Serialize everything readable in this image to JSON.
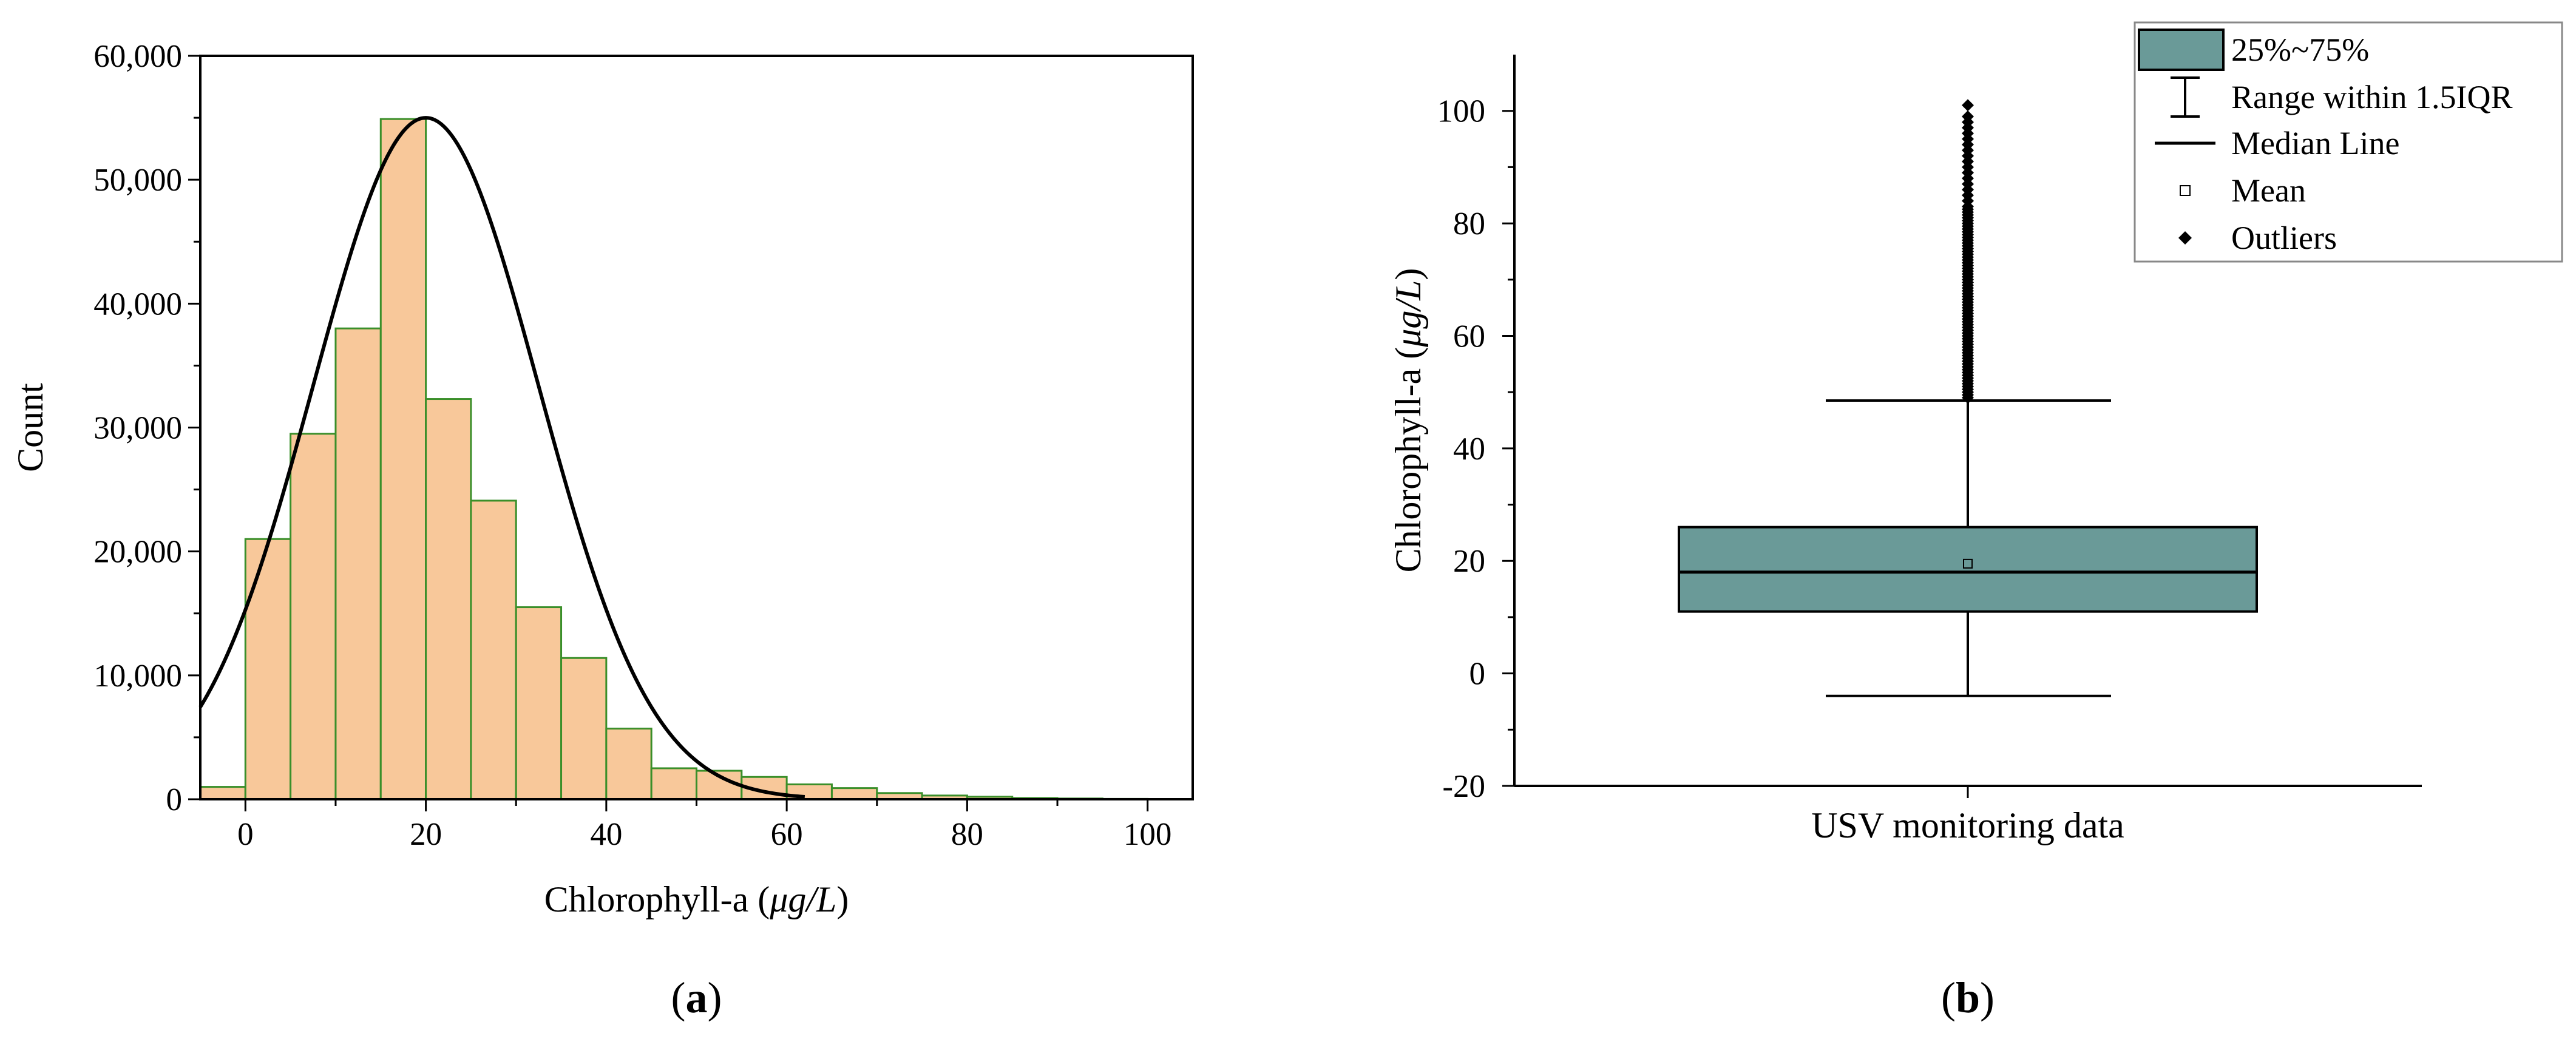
{
  "chart_data": [
    {
      "type": "histogram",
      "xlabel_prefix": "Chlorophyll-a (",
      "xlabel_unit": "μg/L",
      "xlabel_suffix": ")",
      "ylabel": "Count",
      "xlim": [
        -5,
        105
      ],
      "ylim": [
        0,
        60000
      ],
      "x_ticks": [
        0,
        20,
        40,
        60,
        80,
        100
      ],
      "y_ticks": [
        0,
        10000,
        20000,
        30000,
        40000,
        50000,
        60000
      ],
      "x_tick_labels": [
        "0",
        "20",
        "40",
        "60",
        "80",
        "100"
      ],
      "y_tick_labels": [
        "0",
        "10,000",
        "20,000",
        "30,000",
        "40,000",
        "50,000",
        "60,000"
      ],
      "bin_width": 5,
      "bins": [
        {
          "start": -5,
          "end": 0,
          "count": 1000
        },
        {
          "start": 0,
          "end": 5,
          "count": 21000
        },
        {
          "start": 5,
          "end": 10,
          "count": 29500
        },
        {
          "start": 10,
          "end": 15,
          "count": 38000
        },
        {
          "start": 15,
          "end": 20,
          "count": 54900
        },
        {
          "start": 20,
          "end": 25,
          "count": 32300
        },
        {
          "start": 25,
          "end": 30,
          "count": 24100
        },
        {
          "start": 30,
          "end": 35,
          "count": 15500
        },
        {
          "start": 35,
          "end": 40,
          "count": 11400
        },
        {
          "start": 40,
          "end": 45,
          "count": 5700
        },
        {
          "start": 45,
          "end": 50,
          "count": 2500
        },
        {
          "start": 50,
          "end": 55,
          "count": 2300
        },
        {
          "start": 55,
          "end": 60,
          "count": 1800
        },
        {
          "start": 60,
          "end": 65,
          "count": 1200
        },
        {
          "start": 65,
          "end": 70,
          "count": 900
        },
        {
          "start": 70,
          "end": 75,
          "count": 500
        },
        {
          "start": 75,
          "end": 80,
          "count": 300
        },
        {
          "start": 80,
          "end": 85,
          "count": 200
        },
        {
          "start": 85,
          "end": 90,
          "count": 100
        },
        {
          "start": 90,
          "end": 95,
          "count": 60
        },
        {
          "start": 95,
          "end": 100,
          "count": 30
        }
      ],
      "normal_fit": {
        "mean": 20,
        "sd": 12.5,
        "peak_count": 55000
      },
      "bar_fill": "#f8c89a",
      "bar_stroke": "#3a8f2a",
      "curve_color": "#000000",
      "caption": "a",
      "legend": "none"
    },
    {
      "type": "box",
      "categories": [
        "USV monitoring data"
      ],
      "ylabel_prefix": "Chlorophyll-a (",
      "ylabel_unit": "μg/L",
      "ylabel_suffix": ")",
      "ylim": [
        -20,
        110
      ],
      "y_ticks": [
        -20,
        0,
        20,
        40,
        60,
        80,
        100
      ],
      "y_tick_labels": [
        "-20",
        "0",
        "20",
        "40",
        "60",
        "80",
        "100"
      ],
      "stats": {
        "whisker_low": -4,
        "q1": 11,
        "median": 18,
        "q3": 26,
        "whisker_high": 48.5,
        "mean": 19.5
      },
      "outliers": [
        49,
        49.5,
        50,
        50.5,
        51,
        51.5,
        52,
        52.5,
        53,
        53.5,
        54,
        54.5,
        55,
        55.5,
        56,
        56.5,
        57,
        57.5,
        58,
        58.5,
        59,
        59.5,
        60,
        60.5,
        61,
        61.5,
        62,
        62.5,
        63,
        63.5,
        64,
        64.5,
        65,
        65.5,
        66,
        66.5,
        67,
        67.5,
        68,
        68.5,
        69,
        69.5,
        70,
        70.5,
        71,
        71.5,
        72,
        72.5,
        73,
        73.5,
        74,
        74.5,
        75,
        75.5,
        76,
        76.5,
        77,
        77.5,
        78,
        78.5,
        79,
        79.5,
        80,
        80.5,
        81,
        81.5,
        82,
        82.5,
        83,
        84,
        85,
        86,
        87,
        88,
        89,
        90,
        91,
        92,
        93,
        94,
        95,
        96,
        97,
        98,
        99,
        101
      ],
      "box_fill": "#6a9a98",
      "legend": "top-right",
      "legend_items": [
        {
          "label": "25%~75%",
          "symbol": "box"
        },
        {
          "label": "Range within 1.5IQR",
          "symbol": "whisker"
        },
        {
          "label": "Median Line",
          "symbol": "line"
        },
        {
          "label": "Mean",
          "symbol": "square"
        },
        {
          "label": "Outliers",
          "symbol": "diamond"
        }
      ],
      "caption": "b"
    }
  ]
}
